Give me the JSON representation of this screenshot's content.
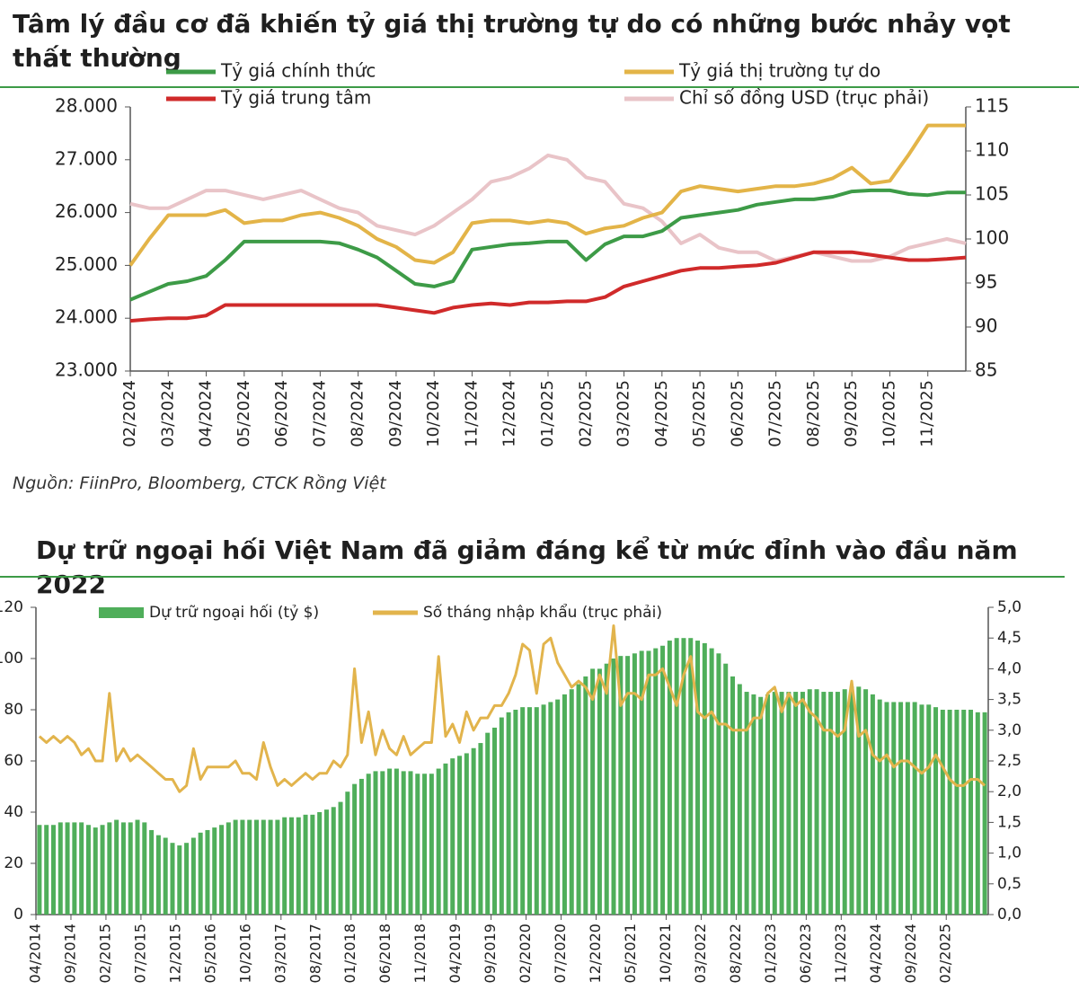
{
  "chart_data": [
    {
      "type": "line",
      "title": "Tâm lý đầu cơ đã khiến tỷ giá thị trường tự do có những bước nhảy vọt thất thường",
      "source": "Nguồn: FiinPro, Bloomberg, CTCK Rồng Việt",
      "categories": [
        "02/2024",
        null,
        "03/2024",
        null,
        "04/2024",
        null,
        "05/2024",
        null,
        "06/2024",
        null,
        "07/2024",
        null,
        "08/2024",
        null,
        "09/2024",
        null,
        "10/2024",
        null,
        "11/2024",
        null,
        "12/2024",
        null,
        "01/2025",
        null,
        "02/2025",
        null,
        "03/2025",
        null,
        "04/2025",
        null,
        "05/2025",
        null,
        "06/2025",
        null,
        "07/2025",
        null,
        "08/2025",
        null,
        "09/2025",
        null,
        "10/2025",
        null,
        "11/2025",
        null,
        null
      ],
      "series": [
        {
          "name": "Tỷ giá chính thức",
          "color": "#3d9b47",
          "values": [
            24350,
            24500,
            24650,
            24700,
            24800,
            25100,
            25450,
            25450,
            25450,
            25450,
            25450,
            25420,
            25300,
            25150,
            24900,
            24650,
            24600,
            24700,
            25300,
            25350,
            25400,
            25420,
            25450,
            25450,
            25100,
            25400,
            25550,
            25550,
            25650,
            25900,
            25950,
            26000,
            26050,
            26150,
            26200,
            26250,
            26250,
            26300,
            26400,
            26420,
            26420,
            26350,
            26330,
            26380,
            26380
          ]
        },
        {
          "name": "Tỷ giá thị trường tự do",
          "color": "#e3b448",
          "values": [
            25000,
            25500,
            25950,
            25950,
            25950,
            26050,
            25800,
            25850,
            25850,
            25950,
            26000,
            25900,
            25750,
            25500,
            25350,
            25100,
            25050,
            25250,
            25800,
            25850,
            25850,
            25800,
            25850,
            25800,
            25600,
            25700,
            25750,
            25900,
            26000,
            26400,
            26500,
            26450,
            26400,
            26450,
            26500,
            26500,
            26550,
            26650,
            26850,
            26550,
            26600,
            27100,
            27650,
            27650,
            27650
          ]
        },
        {
          "name": "Tỷ giá trung tâm",
          "color": "#d02a2a",
          "values": [
            23950,
            23980,
            24000,
            24000,
            24050,
            24250,
            24250,
            24250,
            24250,
            24250,
            24250,
            24250,
            24250,
            24250,
            24200,
            24150,
            24100,
            24200,
            24250,
            24280,
            24250,
            24300,
            24300,
            24320,
            24320,
            24400,
            24600,
            24700,
            24800,
            24900,
            24950,
            24950,
            24980,
            25000,
            25050,
            25150,
            25250,
            25250,
            25250,
            25200,
            25150,
            25100,
            25100,
            25120,
            25150
          ]
        },
        {
          "name": "Chỉ số đồng USD (trục phải)",
          "color": "#e9c4c8",
          "axis": "y2",
          "values": [
            104,
            103.5,
            103.5,
            104.5,
            105.5,
            105.5,
            105,
            104.5,
            105,
            105.5,
            104.5,
            103.5,
            103,
            101.5,
            101,
            100.5,
            101.5,
            103,
            104.5,
            106.5,
            107,
            108,
            109.5,
            109,
            107,
            106.5,
            104,
            103.5,
            102,
            99.5,
            100.5,
            99,
            98.5,
            98.5,
            97.5,
            98,
            98.5,
            98,
            97.5,
            97.5,
            98,
            99,
            99.5,
            100,
            99.5
          ]
        }
      ],
      "ylim": [
        23000,
        28000
      ],
      "yticks": [
        {
          "value": 23000,
          "label": "23.000"
        },
        {
          "value": 24000,
          "label": "24.000"
        },
        {
          "value": 25000,
          "label": "25.000"
        },
        {
          "value": 26000,
          "label": "26.000"
        },
        {
          "value": 27000,
          "label": "27.000"
        },
        {
          "value": 28000,
          "label": "28.000"
        }
      ],
      "y2lim": [
        85,
        115
      ],
      "y2ticks": [
        85,
        90,
        95,
        100,
        105,
        110,
        115
      ],
      "grid": false
    },
    {
      "type": "bar",
      "title": "Dự trữ ngoại hối Việt Nam đã giảm đáng kể từ mức đỉnh vào đầu năm 2022",
      "categories": [
        "04/2014",
        null,
        null,
        null,
        null,
        "09/2014",
        null,
        null,
        null,
        null,
        "02/2015",
        null,
        null,
        null,
        null,
        "07/2015",
        null,
        null,
        null,
        null,
        "12/2015",
        null,
        null,
        null,
        null,
        "05/2016",
        null,
        null,
        null,
        null,
        "10/2016",
        null,
        null,
        null,
        null,
        "03/2017",
        null,
        null,
        null,
        null,
        "08/2017",
        null,
        null,
        null,
        null,
        "01/2018",
        null,
        null,
        null,
        null,
        "06/2018",
        null,
        null,
        null,
        null,
        "11/2018",
        null,
        null,
        null,
        null,
        "04/2019",
        null,
        null,
        null,
        null,
        "09/2019",
        null,
        null,
        null,
        null,
        "02/2020",
        null,
        null,
        null,
        null,
        "07/2020",
        null,
        null,
        null,
        null,
        "12/2020",
        null,
        null,
        null,
        null,
        "05/2021",
        null,
        null,
        null,
        null,
        "10/2021",
        null,
        null,
        null,
        null,
        "03/2022",
        null,
        null,
        null,
        null,
        "08/2022",
        null,
        null,
        null,
        null,
        "01/2023",
        null,
        null,
        null,
        null,
        "06/2023",
        null,
        null,
        null,
        null,
        "11/2023",
        null,
        null,
        null,
        null,
        "04/2024",
        null,
        null,
        null,
        null,
        "09/2024",
        null,
        null,
        null,
        null,
        "02/2025",
        null,
        null,
        null,
        null,
        null
      ],
      "series": [
        {
          "name": "Dự trữ ngoại hối (tỷ $)",
          "type": "bar",
          "color": "#4fae5a",
          "values": [
            35,
            35,
            35,
            36,
            36,
            36,
            36,
            35,
            34,
            35,
            36,
            37,
            36,
            36,
            37,
            36,
            33,
            31,
            30,
            28,
            27,
            28,
            30,
            32,
            33,
            34,
            35,
            36,
            37,
            37,
            37,
            37,
            37,
            37,
            37,
            38,
            38,
            38,
            39,
            39,
            40,
            41,
            42,
            44,
            48,
            51,
            53,
            55,
            56,
            56,
            57,
            57,
            56,
            56,
            55,
            55,
            55,
            57,
            59,
            61,
            62,
            63,
            65,
            67,
            71,
            73,
            77,
            79,
            80,
            81,
            81,
            81,
            82,
            83,
            84,
            86,
            88,
            90,
            93,
            96,
            96,
            98,
            100,
            101,
            101,
            102,
            103,
            103,
            104,
            105,
            107,
            108,
            108,
            108,
            107,
            106,
            104,
            102,
            98,
            93,
            90,
            87,
            86,
            85,
            86,
            87,
            87,
            87,
            87,
            87,
            88,
            88,
            87,
            87,
            87,
            88,
            89,
            89,
            88,
            86,
            84,
            83,
            83,
            83,
            83,
            83,
            82,
            82,
            81,
            80,
            80,
            80,
            80,
            80,
            79,
            79
          ]
        },
        {
          "name": "Số tháng nhập khẩu (trục phải)",
          "type": "line",
          "axis": "y2",
          "color": "#e2b44c",
          "values": [
            2.9,
            2.8,
            2.9,
            2.8,
            2.9,
            2.8,
            2.6,
            2.7,
            2.5,
            2.5,
            3.6,
            2.5,
            2.7,
            2.5,
            2.6,
            2.5,
            2.4,
            2.3,
            2.2,
            2.2,
            2.0,
            2.1,
            2.7,
            2.2,
            2.4,
            2.4,
            2.4,
            2.4,
            2.5,
            2.3,
            2.3,
            2.2,
            2.8,
            2.4,
            2.1,
            2.2,
            2.1,
            2.2,
            2.3,
            2.2,
            2.3,
            2.3,
            2.5,
            2.4,
            2.6,
            4.0,
            2.8,
            3.3,
            2.6,
            3.0,
            2.7,
            2.6,
            2.9,
            2.6,
            2.7,
            2.8,
            2.8,
            4.2,
            2.9,
            3.1,
            2.8,
            3.3,
            3.0,
            3.2,
            3.2,
            3.4,
            3.4,
            3.6,
            3.9,
            4.4,
            4.3,
            3.6,
            4.4,
            4.5,
            4.1,
            3.9,
            3.7,
            3.8,
            3.7,
            3.5,
            3.9,
            3.6,
            4.7,
            3.4,
            3.6,
            3.6,
            3.5,
            3.9,
            3.9,
            4.0,
            3.7,
            3.4,
            3.9,
            4.2,
            3.3,
            3.2,
            3.3,
            3.1,
            3.1,
            3.0,
            3.0,
            3.0,
            3.2,
            3.2,
            3.6,
            3.7,
            3.3,
            3.6,
            3.4,
            3.5,
            3.3,
            3.2,
            3.0,
            3.0,
            2.9,
            3.0,
            3.8,
            2.9,
            3.0,
            2.6,
            2.5,
            2.6,
            2.4,
            2.5,
            2.5,
            2.4,
            2.3,
            2.4,
            2.6,
            2.4,
            2.2,
            2.1,
            2.1,
            2.2,
            2.2,
            2.1
          ]
        }
      ],
      "ylim": [
        0,
        120
      ],
      "yticks": [
        0,
        20,
        40,
        60,
        80,
        100,
        120
      ],
      "y2lim": [
        0,
        5
      ],
      "y2ticks": [
        {
          "value": 0,
          "label": "0,0"
        },
        {
          "value": 0.5,
          "label": "0,5"
        },
        {
          "value": 1,
          "label": "1,0"
        },
        {
          "value": 1.5,
          "label": "1,5"
        },
        {
          "value": 2,
          "label": "2,0"
        },
        {
          "value": 2.5,
          "label": "2,5"
        },
        {
          "value": 3,
          "label": "3,0"
        },
        {
          "value": 3.5,
          "label": "3,5"
        },
        {
          "value": 4,
          "label": "4,0"
        },
        {
          "value": 4.5,
          "label": "4,5"
        },
        {
          "value": 5,
          "label": "5,0"
        }
      ],
      "grid": false
    }
  ]
}
